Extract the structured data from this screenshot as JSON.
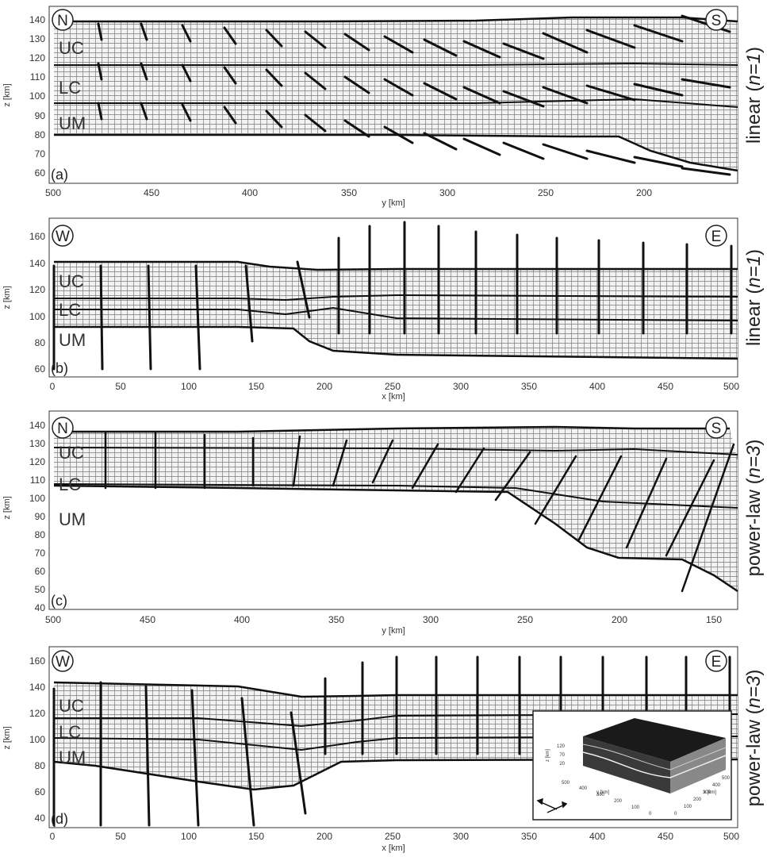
{
  "panels": [
    {
      "id": "a",
      "label": "(a)",
      "side_title": "linear",
      "side_n": "n=1",
      "xlabel": "y [km]",
      "ylabel": "z [km]",
      "left_marker": "N",
      "right_marker": "S",
      "layers": [
        "UC",
        "LC",
        "UM"
      ],
      "x_ticks": [
        "500",
        "450",
        "400",
        "350",
        "300",
        "250",
        "200"
      ],
      "y_ticks": [
        "60",
        "70",
        "80",
        "90",
        "100",
        "110",
        "120",
        "130",
        "140"
      ],
      "xlim": [
        500,
        160
      ],
      "ylim": [
        55,
        145
      ]
    },
    {
      "id": "b",
      "label": "(b)",
      "side_title": "linear",
      "side_n": "n=1",
      "xlabel": "x [km]",
      "ylabel": "z [km]",
      "left_marker": "W",
      "right_marker": "E",
      "layers": [
        "UC",
        "LC",
        "UM"
      ],
      "x_ticks": [
        "0",
        "50",
        "100",
        "150",
        "200",
        "250",
        "300",
        "350",
        "400",
        "450",
        "500"
      ],
      "y_ticks": [
        "60",
        "80",
        "100",
        "120",
        "140",
        "160"
      ],
      "xlim": [
        0,
        500
      ],
      "ylim": [
        55,
        172
      ]
    },
    {
      "id": "c",
      "label": "(c)",
      "side_title": "power-law",
      "side_n": "n=3",
      "xlabel": "y [km]",
      "ylabel": "z [km]",
      "left_marker": "N",
      "right_marker": "S",
      "layers": [
        "UC",
        "LC",
        "UM"
      ],
      "x_ticks": [
        "500",
        "450",
        "400",
        "350",
        "300",
        "250",
        "200",
        "150"
      ],
      "y_ticks": [
        "40",
        "50",
        "60",
        "70",
        "80",
        "90",
        "100",
        "110",
        "120",
        "130",
        "140"
      ],
      "xlim": [
        500,
        140
      ],
      "ylim": [
        40,
        145
      ]
    },
    {
      "id": "d",
      "label": "(d)",
      "side_title": "power-law",
      "side_n": "n=3",
      "xlabel": "x [km]",
      "ylabel": "z [km]",
      "left_marker": "W",
      "right_marker": "E",
      "layers": [
        "UC",
        "LC",
        "UM"
      ],
      "x_ticks": [
        "0",
        "50",
        "100",
        "150",
        "200",
        "250",
        "300",
        "350",
        "400",
        "450",
        "500"
      ],
      "y_ticks": [
        "40",
        "60",
        "80",
        "100",
        "120",
        "140",
        "160"
      ],
      "xlim": [
        0,
        500
      ],
      "ylim": [
        35,
        172
      ]
    }
  ],
  "inset": {
    "z_label": "z [km]",
    "z_ticks": [
      "120",
      "70",
      "20"
    ],
    "y_label": "y [km]",
    "y_ticks": [
      "500",
      "400",
      "300",
      "200",
      "100",
      "0"
    ],
    "x_label": "x [km]",
    "x_ticks": [
      "0",
      "100",
      "200",
      "300",
      "400",
      "500"
    ]
  }
}
